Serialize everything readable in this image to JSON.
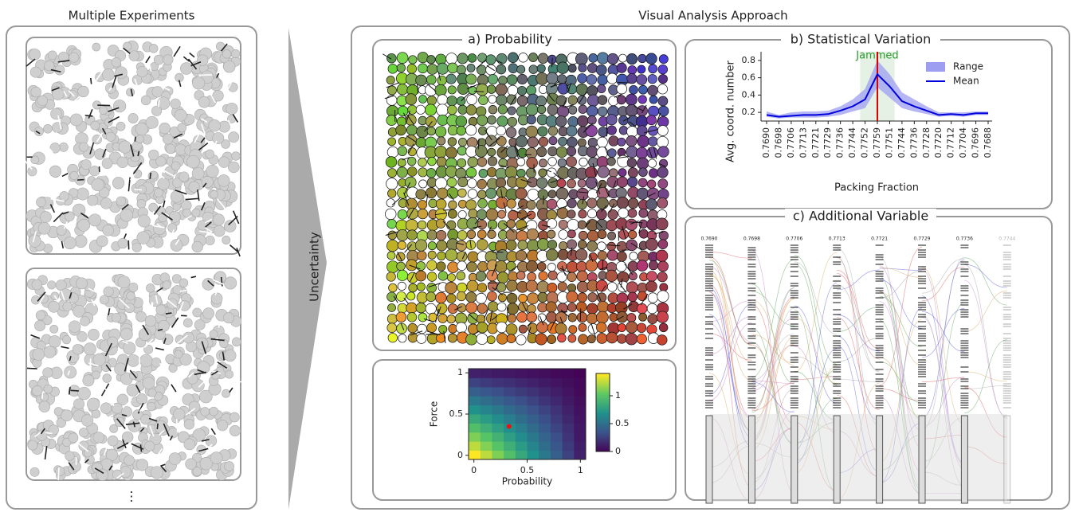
{
  "labels": {
    "left_title": "Multiple Experiments",
    "right_title": "Visual Analysis Approach",
    "arrow": "Uncertainty",
    "ellipsis": "⋮",
    "panel_a": "a) Probability",
    "panel_b": "b) Statistical Variation",
    "panel_c": "c) Additional Variable"
  },
  "parallel_sets": {
    "columns": [
      "0.7690",
      "0.7698",
      "0.7706",
      "0.7713",
      "0.7721",
      "0.7729",
      "0.7736",
      "0.7744"
    ]
  },
  "chart_data": [
    {
      "type": "line",
      "ylabel": "Avg. coord. number",
      "xlabel": "Packing Fraction",
      "annotation": "Jammed",
      "legend": "upper right",
      "categories": [
        "0.7690",
        "0.7698",
        "0.7706",
        "0.7713",
        "0.7721",
        "0.7729",
        "0.7736",
        "0.7744",
        "0.7752",
        "0.7759",
        "0.7751",
        "0.7744",
        "0.7736",
        "0.7728",
        "0.7720",
        "0.7712",
        "0.7704",
        "0.7696",
        "0.7688"
      ],
      "series": [
        {
          "name": "Range",
          "color": "#9d9df2",
          "low": [
            0.15,
            0.13,
            0.14,
            0.14,
            0.14,
            0.15,
            0.17,
            0.21,
            0.25,
            0.49,
            0.37,
            0.25,
            0.21,
            0.18,
            0.15,
            0.16,
            0.15,
            0.17,
            0.17
          ],
          "high": [
            0.21,
            0.17,
            0.2,
            0.21,
            0.21,
            0.22,
            0.27,
            0.35,
            0.47,
            0.8,
            0.64,
            0.43,
            0.35,
            0.27,
            0.2,
            0.2,
            0.2,
            0.21,
            0.21
          ]
        },
        {
          "name": "Mean",
          "color": "#0000dd",
          "values": [
            0.17,
            0.15,
            0.16,
            0.17,
            0.17,
            0.18,
            0.22,
            0.27,
            0.35,
            0.64,
            0.5,
            0.33,
            0.27,
            0.22,
            0.17,
            0.18,
            0.17,
            0.19,
            0.19
          ]
        }
      ],
      "ylim": [
        0.1,
        0.9
      ],
      "yticks": [
        0.2,
        0.4,
        0.6,
        0.8
      ]
    },
    {
      "type": "heatmap",
      "xlabel": "Probability",
      "ylabel": "Force",
      "colormap": "viridis",
      "z": [
        [
          1.4,
          1.26,
          1.12,
          0.98,
          0.84,
          0.7,
          0.56,
          0.42,
          0.28,
          0.14
        ],
        [
          1.26,
          1.13,
          1.01,
          0.88,
          0.76,
          0.63,
          0.5,
          0.38,
          0.25,
          0.13
        ],
        [
          1.12,
          1.01,
          0.9,
          0.78,
          0.67,
          0.56,
          0.45,
          0.34,
          0.22,
          0.11
        ],
        [
          0.98,
          0.88,
          0.78,
          0.69,
          0.59,
          0.49,
          0.39,
          0.29,
          0.2,
          0.1
        ],
        [
          0.84,
          0.76,
          0.67,
          0.59,
          0.5,
          0.42,
          0.34,
          0.25,
          0.17,
          0.08
        ],
        [
          0.7,
          0.63,
          0.56,
          0.49,
          0.42,
          0.35,
          0.28,
          0.21,
          0.14,
          0.07
        ],
        [
          0.56,
          0.5,
          0.45,
          0.39,
          0.34,
          0.28,
          0.22,
          0.17,
          0.11,
          0.06
        ],
        [
          0.42,
          0.38,
          0.34,
          0.29,
          0.25,
          0.21,
          0.17,
          0.13,
          0.08,
          0.04
        ],
        [
          0.28,
          0.25,
          0.22,
          0.2,
          0.17,
          0.14,
          0.11,
          0.08,
          0.06,
          0.03
        ],
        [
          0.14,
          0.13,
          0.11,
          0.1,
          0.08,
          0.07,
          0.06,
          0.04,
          0.03,
          0.01
        ]
      ],
      "xlim": [
        -0.05,
        1.05
      ],
      "ylim": [
        -0.05,
        1.05
      ],
      "xticks": [
        0,
        0.5,
        1
      ],
      "yticks": [
        0,
        0.5,
        1
      ],
      "zlim": [
        0,
        1.4
      ],
      "colorbar_ticks": [
        0,
        0.5,
        1
      ],
      "point": {
        "x": 0.33,
        "y": 0.35,
        "color": "#ee1111"
      }
    }
  ]
}
